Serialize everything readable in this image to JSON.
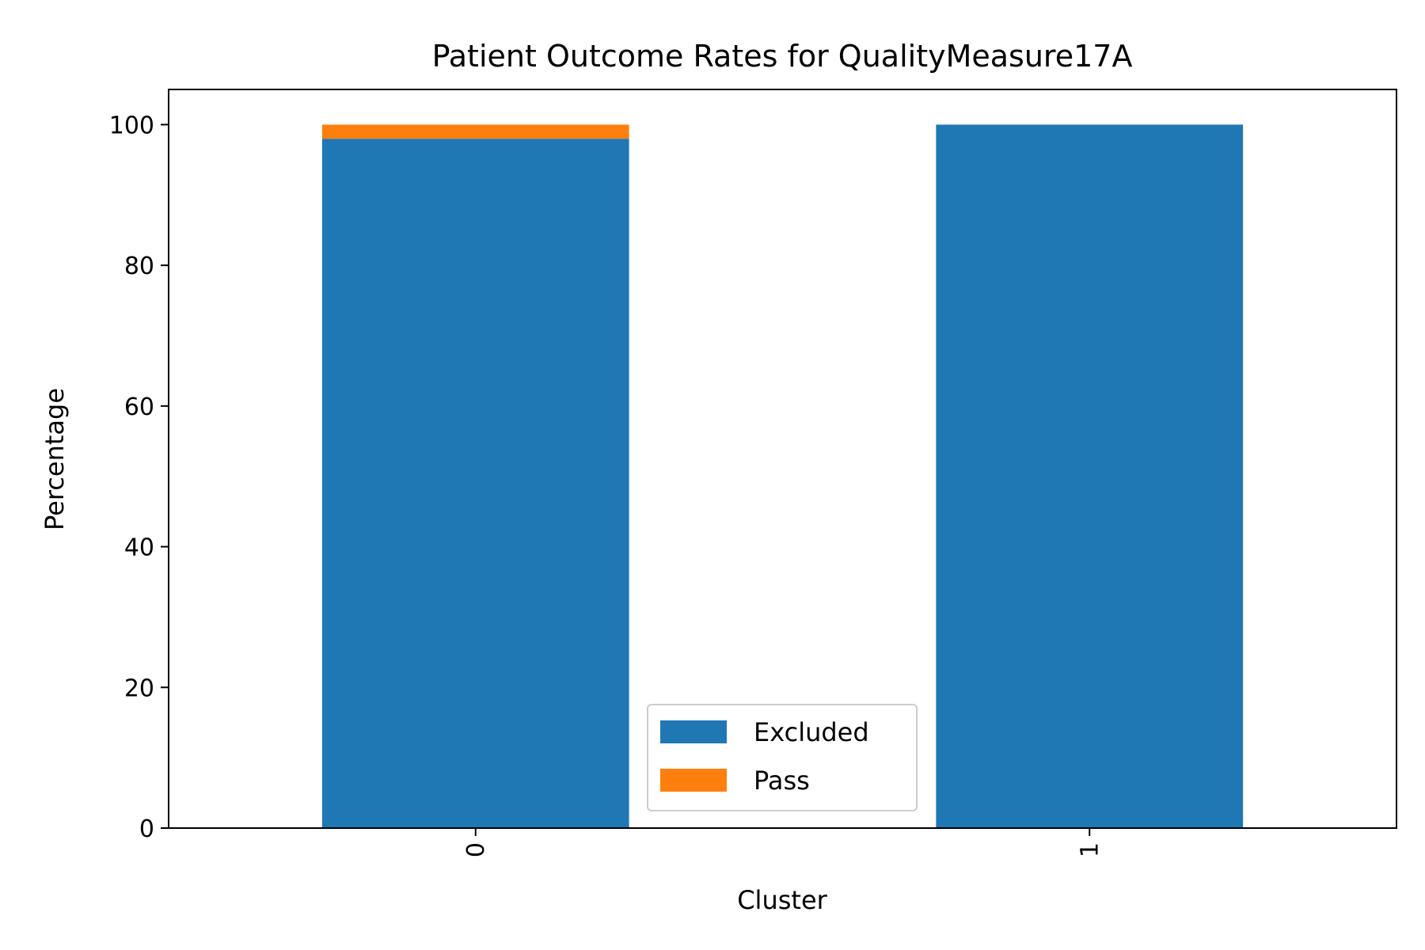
{
  "chart_data": {
    "type": "bar",
    "stacked": true,
    "title": "Patient Outcome Rates for QualityMeasure17A",
    "xlabel": "Cluster",
    "ylabel": "Percentage",
    "categories": [
      "0",
      "1"
    ],
    "series": [
      {
        "name": "Excluded",
        "color": "#1f77b4",
        "values": [
          98.0,
          100.0
        ]
      },
      {
        "name": "Pass",
        "color": "#ff7f0e",
        "values": [
          2.0,
          0.0
        ]
      }
    ],
    "ylim": [
      0,
      105
    ],
    "yticks": [
      0,
      20,
      40,
      60,
      80,
      100
    ],
    "grid": false,
    "legend_position": "lower-center",
    "xtick_rotation": "vertical"
  }
}
